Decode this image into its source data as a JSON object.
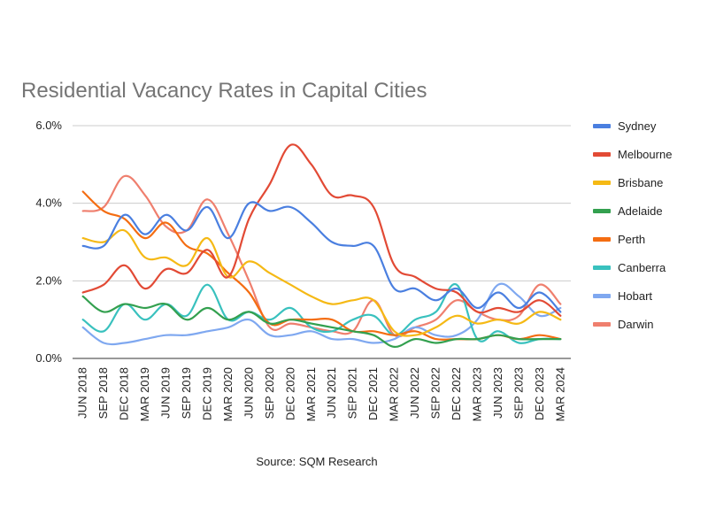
{
  "chart_data": {
    "type": "line",
    "title": "Residential Vacancy Rates in Capital Cities",
    "source": "Source: SQM Research",
    "xlabel": "",
    "ylabel": "",
    "ylim": [
      0,
      6
    ],
    "y_ticks": [
      "0.0%",
      "2.0%",
      "4.0%",
      "6.0%"
    ],
    "y_tick_values": [
      0,
      2,
      4,
      6
    ],
    "grid": true,
    "legend_position": "right",
    "categories": [
      "JUN 2018",
      "SEP 2018",
      "DEC 2018",
      "MAR 2019",
      "JUN 2019",
      "SEP 2019",
      "DEC 2019",
      "MAR 2020",
      "JUN 2020",
      "SEP 2020",
      "DEC 2020",
      "MAR 2021",
      "JUN 2021",
      "SEP 2021",
      "DEC 2021",
      "MAR 2022",
      "JUN 2022",
      "SEP 2022",
      "DEC 2022",
      "MAR 2023",
      "JUN 2023",
      "SEP 2023",
      "DEC 2023",
      "MAR 2024"
    ],
    "x": [
      "2018-06",
      "2018-09",
      "2018-12",
      "2019-03",
      "2019-06",
      "2019-09",
      "2019-12",
      "2020-03",
      "2020-06",
      "2020-09",
      "2020-12",
      "2021-03",
      "2021-06",
      "2021-09",
      "2021-12",
      "2022-03",
      "2022-06",
      "2022-09",
      "2022-12",
      "2023-03",
      "2023-06",
      "2023-09",
      "2023-12",
      "2024-03"
    ],
    "series": [
      {
        "name": "Sydney",
        "color": "#4a7fe0",
        "values": [
          2.9,
          2.9,
          3.7,
          3.2,
          3.7,
          3.3,
          3.9,
          3.1,
          4.0,
          3.8,
          3.9,
          3.5,
          3.0,
          2.9,
          2.9,
          1.8,
          1.8,
          1.5,
          1.8,
          1.3,
          1.7,
          1.3,
          1.7,
          1.2
        ]
      },
      {
        "name": "Melbourne",
        "color": "#e24a35",
        "values": [
          1.7,
          1.9,
          2.4,
          1.8,
          2.3,
          2.2,
          2.8,
          2.1,
          3.6,
          4.5,
          5.5,
          5.0,
          4.2,
          4.2,
          3.9,
          2.4,
          2.1,
          1.8,
          1.7,
          1.2,
          1.3,
          1.2,
          1.5,
          1.1
        ]
      },
      {
        "name": "Brisbane",
        "color": "#f5b915",
        "values": [
          3.1,
          3.0,
          3.3,
          2.6,
          2.6,
          2.4,
          3.1,
          2.1,
          2.5,
          2.2,
          1.9,
          1.6,
          1.4,
          1.5,
          1.5,
          0.7,
          0.6,
          0.8,
          1.1,
          0.9,
          1.0,
          0.9,
          1.2,
          1.0
        ]
      },
      {
        "name": "Adelaide",
        "color": "#33a04f",
        "values": [
          1.6,
          1.2,
          1.4,
          1.3,
          1.4,
          1.0,
          1.3,
          1.0,
          1.2,
          0.9,
          1.0,
          0.9,
          0.8,
          0.7,
          0.6,
          0.3,
          0.5,
          0.4,
          0.5,
          0.5,
          0.6,
          0.5,
          0.5,
          0.5
        ]
      },
      {
        "name": "Perth",
        "color": "#f46d12",
        "values": [
          4.3,
          3.8,
          3.6,
          3.1,
          3.5,
          2.9,
          2.7,
          2.2,
          1.7,
          0.9,
          1.0,
          1.0,
          1.0,
          0.7,
          0.7,
          0.6,
          0.7,
          0.5,
          0.5,
          0.5,
          0.6,
          0.5,
          0.6,
          0.5
        ]
      },
      {
        "name": "Canberra",
        "color": "#39c1be",
        "values": [
          1.0,
          0.7,
          1.4,
          1.0,
          1.4,
          1.1,
          1.9,
          1.0,
          1.2,
          1.0,
          1.3,
          0.8,
          0.7,
          1.0,
          1.1,
          0.6,
          1.0,
          1.2,
          1.9,
          0.5,
          0.7,
          0.4,
          0.5,
          0.5
        ]
      },
      {
        "name": "Hobart",
        "color": "#7fa8f0",
        "values": [
          0.8,
          0.4,
          0.4,
          0.5,
          0.6,
          0.6,
          0.7,
          0.8,
          1.0,
          0.6,
          0.6,
          0.7,
          0.5,
          0.5,
          0.4,
          0.5,
          0.8,
          0.6,
          0.6,
          1.0,
          1.9,
          1.6,
          1.1,
          1.3
        ]
      },
      {
        "name": "Darwin",
        "color": "#ef7f6e",
        "values": [
          3.8,
          3.9,
          4.7,
          4.2,
          3.4,
          3.3,
          4.1,
          3.2,
          2.0,
          0.8,
          0.9,
          0.8,
          0.7,
          0.7,
          1.5,
          0.6,
          0.8,
          1.0,
          1.5,
          1.2,
          1.0,
          1.1,
          1.9,
          1.4
        ]
      }
    ]
  }
}
